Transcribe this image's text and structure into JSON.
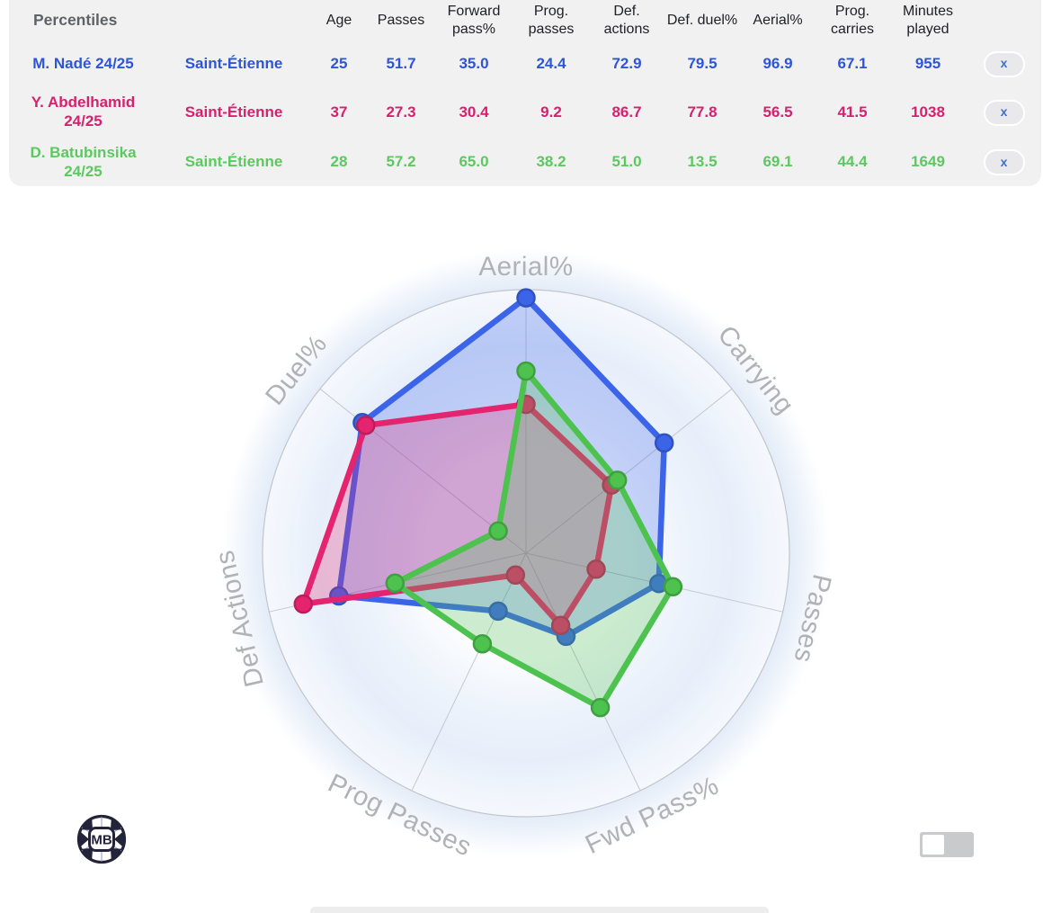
{
  "table": {
    "title": "Percentiles",
    "columns": [
      "Age",
      "Passes",
      "Forward pass%",
      "Prog. passes",
      "Def. actions",
      "Def. duel%",
      "Aerial%",
      "Prog. carries",
      "Minutes played"
    ],
    "remove_label": "x",
    "remove_color": "#3a6fd9",
    "players": [
      {
        "name": "M. Nadé 24/25",
        "team": "Saint-Étienne",
        "color": "#2f55d4",
        "values": [
          "25",
          "51.7",
          "35.0",
          "24.4",
          "72.9",
          "79.5",
          "96.9",
          "67.1",
          "955"
        ]
      },
      {
        "name": "Y. Abdelhamid 24/25",
        "team": "Saint-Étienne",
        "color": "#d6216f",
        "values": [
          "37",
          "27.3",
          "30.4",
          "9.2",
          "86.7",
          "77.8",
          "56.5",
          "41.5",
          "1038"
        ]
      },
      {
        "name": "D. Batubinsika 24/25",
        "team": "Saint-Étienne",
        "color": "#5cc95f",
        "values": [
          "28",
          "57.2",
          "65.0",
          "38.2",
          "51.0",
          "13.5",
          "69.1",
          "44.4",
          "1649"
        ]
      }
    ]
  },
  "chart_data": {
    "type": "radar",
    "axes": [
      "Aerial%",
      "Carrying",
      "Passes",
      "Fwd Pass%",
      "Prog Passes",
      "Def Actions",
      "Duel%"
    ],
    "scale_min": 0,
    "scale_max": 100,
    "grid": "circular",
    "legend": "none",
    "series": [
      {
        "name": "M. Nadé 24/25",
        "color": "#3b64e9",
        "values": [
          96.9,
          67.1,
          51.7,
          35.0,
          24.4,
          72.9,
          79.5
        ]
      },
      {
        "name": "Y. Abdelhamid 24/25",
        "color": "#e5246f",
        "values": [
          56.5,
          41.5,
          27.3,
          30.4,
          9.2,
          86.7,
          77.8
        ]
      },
      {
        "name": "D. Batubinsika 24/25",
        "color": "#4ec24e",
        "values": [
          69.1,
          44.4,
          57.2,
          65.0,
          38.2,
          51.0,
          13.5
        ]
      }
    ]
  },
  "footer": {
    "logo_text": "MB"
  }
}
